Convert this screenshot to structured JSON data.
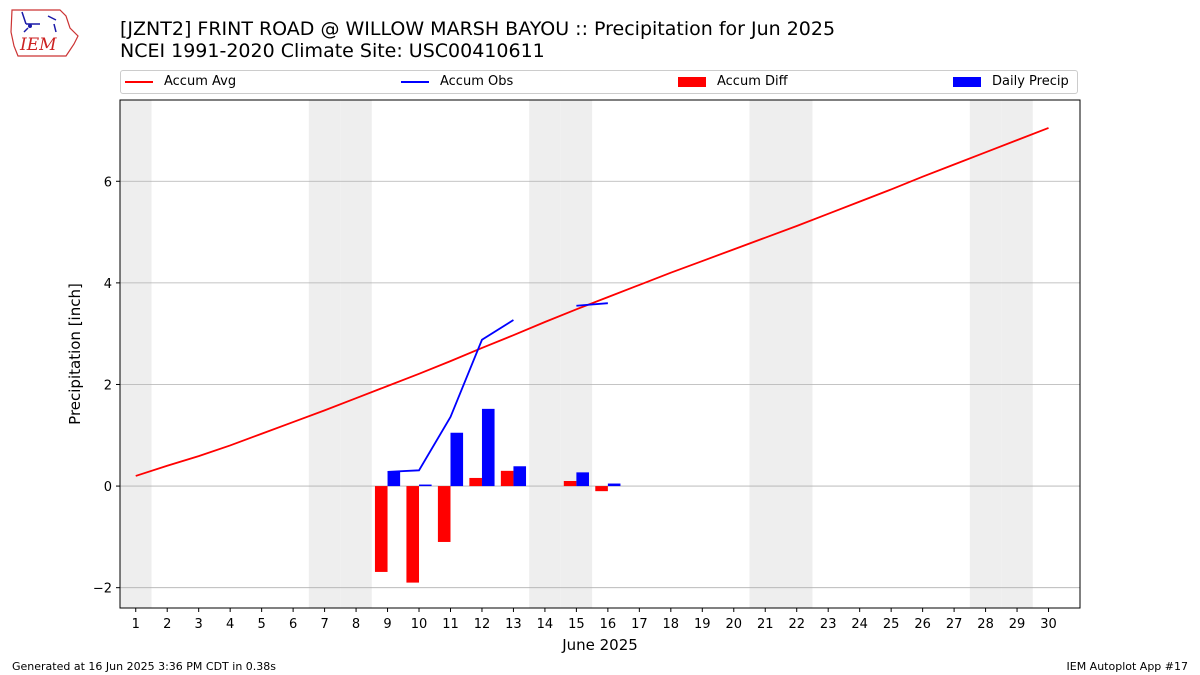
{
  "logo_text": "IEM",
  "title_line1": "[JZNT2] FRINT ROAD @ WILLOW MARSH BAYOU :: Precipitation for Jun 2025",
  "title_line2": "NCEI 1991-2020 Climate Site: USC00410611",
  "footer_left": "Generated at 16 Jun 2025 3:36 PM CDT in 0.38s",
  "footer_right": "IEM Autoplot App #17",
  "colors": {
    "accum_avg": "#ff0000",
    "accum_obs": "#0000ff",
    "accum_diff": "#ff0000",
    "daily_precip": "#0000ff",
    "weekend_shade": "#eeeeee",
    "grid": "#b0b0b0"
  },
  "chart_data": {
    "type": "bar",
    "title": "[JZNT2] FRINT ROAD @ WILLOW MARSH BAYOU :: Precipitation for Jun 2025",
    "subtitle": "NCEI 1991-2020 Climate Site: USC00410611",
    "xlabel": "June 2025",
    "ylabel": "Precipitation [inch]",
    "xlim": [
      0.5,
      31
    ],
    "ylim": [
      -2.4,
      7.6
    ],
    "yticks": [
      -2,
      0,
      2,
      4,
      6
    ],
    "xticks": [
      1,
      2,
      3,
      4,
      5,
      6,
      7,
      8,
      9,
      10,
      11,
      12,
      13,
      14,
      15,
      16,
      17,
      18,
      19,
      20,
      21,
      22,
      23,
      24,
      25,
      26,
      27,
      28,
      29,
      30
    ],
    "grid": "horizontal",
    "legend": {
      "placement": "top",
      "entries": [
        {
          "label": "Accum Avg",
          "kind": "line",
          "color": "#ff0000"
        },
        {
          "label": "Accum Obs",
          "kind": "line",
          "color": "#0000ff"
        },
        {
          "label": "Accum Diff",
          "kind": "bar",
          "color": "#ff0000"
        },
        {
          "label": "Daily Precip",
          "kind": "bar",
          "color": "#0000ff"
        }
      ]
    },
    "weekend_days": [
      1,
      7,
      8,
      14,
      15,
      21,
      22,
      28,
      29
    ],
    "series": [
      {
        "name": "Accum Avg",
        "type": "line",
        "color": "#ff0000",
        "x": [
          1,
          2,
          3,
          4,
          5,
          6,
          7,
          8,
          9,
          10,
          11,
          12,
          13,
          14,
          15,
          16,
          17,
          18,
          19,
          20,
          21,
          22,
          23,
          24,
          25,
          26,
          27,
          28,
          29,
          30
        ],
        "values": [
          0.2,
          0.4,
          0.59,
          0.8,
          1.03,
          1.26,
          1.49,
          1.73,
          1.97,
          2.21,
          2.46,
          2.72,
          2.97,
          3.23,
          3.48,
          3.72,
          3.96,
          4.2,
          4.43,
          4.66,
          4.89,
          5.12,
          5.36,
          5.6,
          5.84,
          6.09,
          6.33,
          6.57,
          6.81,
          7.05
        ]
      },
      {
        "name": "Accum Obs",
        "type": "line",
        "color": "#0000ff",
        "segments": [
          {
            "x": [
              9,
              10,
              11,
              12,
              13
            ],
            "values": [
              0.28,
              0.31,
              1.36,
              2.88,
              3.27
            ]
          },
          {
            "x": [
              15,
              16
            ],
            "values": [
              3.55,
              3.6
            ]
          }
        ]
      },
      {
        "name": "Accum Diff",
        "type": "bar",
        "color": "#ff0000",
        "x": [
          9,
          10,
          11,
          12,
          13,
          15,
          16
        ],
        "values": [
          -1.69,
          -1.9,
          -1.1,
          0.16,
          0.3,
          0.1,
          -0.1
        ]
      },
      {
        "name": "Daily Precip",
        "type": "bar",
        "color": "#0000ff",
        "x": [
          9,
          10,
          11,
          12,
          13,
          15,
          16
        ],
        "values": [
          0.28,
          0.03,
          1.05,
          1.52,
          0.39,
          0.27,
          0.05
        ]
      }
    ]
  }
}
